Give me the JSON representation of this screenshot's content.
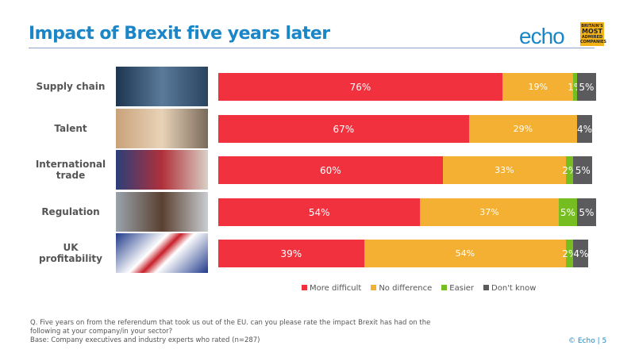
{
  "header": {
    "title": "Impact of Brexit five years later",
    "logo": "echo",
    "badge": "BRITAIN'S MOST ADMIRED COMPANIES"
  },
  "chart_data": {
    "type": "bar",
    "orientation": "horizontal",
    "stacked": true,
    "xlim": [
      0,
      100
    ],
    "categories": [
      "Supply chain",
      "Talent",
      "International trade",
      "Regulation",
      "UK profitability"
    ],
    "series": [
      {
        "name": "More difficult",
        "color": "#f2313f",
        "values": [
          76,
          67,
          60,
          54,
          39
        ]
      },
      {
        "name": "No difference",
        "color": "#f3b033",
        "values": [
          19,
          29,
          33,
          37,
          54
        ]
      },
      {
        "name": "Easier",
        "color": "#76bd22",
        "values": [
          1,
          0,
          2,
          5,
          2
        ]
      },
      {
        "name": "Don't know",
        "color": "#5b5b5d",
        "values": [
          5,
          4,
          5,
          5,
          4
        ]
      }
    ],
    "legend": "bottom"
  },
  "footer": {
    "question": "Q. Five years on from the referendum that took us out of the EU. can you please rate the impact Brexit has had on the following at your company/in your sector?",
    "base": "Base: Company executives and industry experts who rated (n=287)",
    "copyright": "© Echo  |  5"
  }
}
